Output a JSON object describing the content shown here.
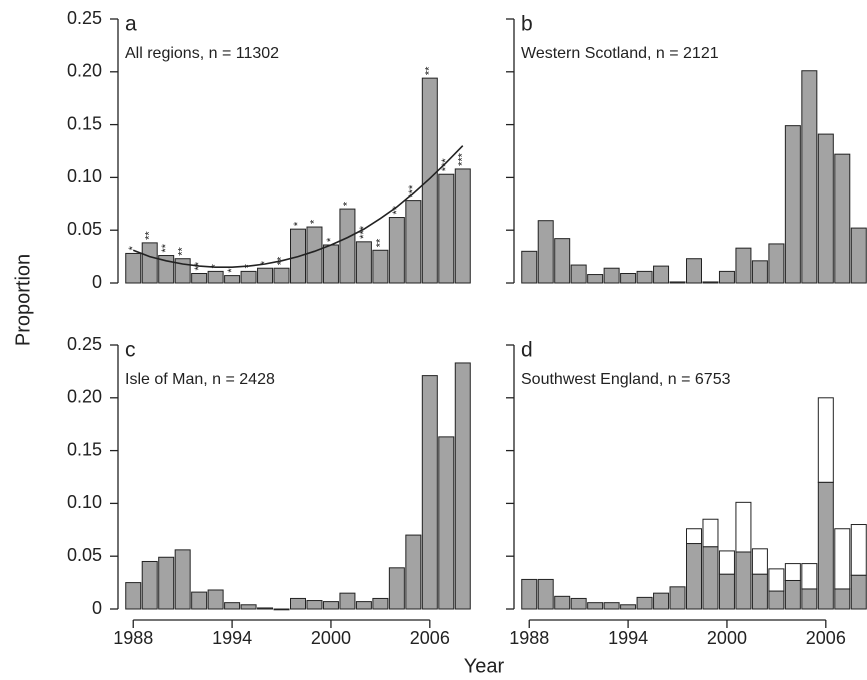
{
  "shared": {
    "y_label": "Proportion",
    "x_label": "Year"
  },
  "chart_data": [
    {
      "type": "bar",
      "title": "a",
      "subtitle": "All regions, n = 11302",
      "x": [
        1988,
        1989,
        1990,
        1991,
        1992,
        1993,
        1994,
        1995,
        1996,
        1997,
        1998,
        1999,
        2000,
        2001,
        2002,
        2003,
        2004,
        2005,
        2006,
        2007,
        2008
      ],
      "xlim": [
        1987.5,
        2008.5
      ],
      "values": [
        0.028,
        0.038,
        0.026,
        0.023,
        0.009,
        0.011,
        0.007,
        0.011,
        0.014,
        0.014,
        0.051,
        0.053,
        0.036,
        0.07,
        0.039,
        0.031,
        0.062,
        0.078,
        0.194,
        0.103,
        0.108
      ],
      "color": "#a3a3a3",
      "annotations": [
        "*",
        "**",
        "**",
        "**",
        "**",
        "*",
        "*",
        "*",
        "*",
        "**",
        "*",
        "*",
        "*",
        "*",
        "***",
        "**",
        "**",
        "***",
        "**",
        "***",
        "***"
      ],
      "trend": [
        0.031,
        0.025,
        0.021,
        0.018,
        0.016,
        0.015,
        0.015,
        0.016,
        0.018,
        0.021,
        0.025,
        0.03,
        0.036,
        0.043,
        0.051,
        0.061,
        0.072,
        0.085,
        0.099,
        0.114,
        0.13
      ],
      "ylim": [
        0,
        0.25
      ],
      "yticks": [
        0,
        0.05,
        {
          "value": 0.1,
          "label": "0.10"
        },
        0.15,
        {
          "value": 0.2,
          "label": "0.20"
        },
        0.25
      ],
      "ytick_labels": true
    },
    {
      "type": "bar",
      "title": "b",
      "subtitle": "Western Scotland, n = 2121",
      "x": [
        1988,
        1989,
        1990,
        1991,
        1992,
        1993,
        1994,
        1995,
        1996,
        1997,
        1998,
        1999,
        2000,
        2001,
        2002,
        2003,
        2004,
        2005,
        2006,
        2007,
        2008
      ],
      "xlim": [
        1987.5,
        2008.5
      ],
      "values": [
        0.03,
        0.059,
        0.042,
        0.017,
        0.008,
        0.014,
        0.009,
        0.011,
        0.016,
        0.001,
        0.023,
        0.001,
        0.011,
        0.033,
        0.021,
        0.037,
        0.149,
        0.201,
        0.141,
        0.122,
        0.052
      ],
      "color": "#a3a3a3",
      "ylim": [
        0,
        0.25
      ],
      "yticks": [
        0,
        0.05,
        0.1,
        0.15,
        0.2,
        0.25
      ],
      "ytick_labels": false
    },
    {
      "type": "bar",
      "title": "c",
      "subtitle": "Isle of Man, n = 2428",
      "x": [
        1988,
        1989,
        1990,
        1991,
        1992,
        1993,
        1994,
        1995,
        1996,
        1997,
        1998,
        1999,
        2000,
        2001,
        2002,
        2003,
        2004,
        2005,
        2006,
        2007,
        2008
      ],
      "xlim": [
        1987.5,
        2008.5
      ],
      "xticks": [
        1988,
        1994,
        2000,
        2006
      ],
      "values": [
        0.025,
        0.045,
        0.049,
        0.056,
        0.016,
        0.018,
        0.006,
        0.004,
        0.001,
        0,
        0.01,
        0.008,
        0.007,
        0.015,
        0.007,
        0.01,
        0.039,
        0.07,
        0.221,
        0.163,
        0.233
      ],
      "color": "#a3a3a3",
      "ylim": [
        0,
        0.25
      ],
      "yticks": [
        0,
        0.05,
        {
          "value": 0.1,
          "label": "0.10"
        },
        0.15,
        {
          "value": 0.2,
          "label": "0.20"
        },
        0.25
      ],
      "ytick_labels": true
    },
    {
      "type": "bar",
      "title": "d",
      "subtitle": "Southwest England, n = 6753",
      "x": [
        1988,
        1989,
        1990,
        1991,
        1992,
        1993,
        1994,
        1995,
        1996,
        1997,
        1998,
        1999,
        2000,
        2001,
        2002,
        2003,
        2004,
        2005,
        2006,
        2007,
        2008
      ],
      "xlim": [
        1987.5,
        2008.5
      ],
      "xticks": [
        1988,
        1994,
        2000,
        2006
      ],
      "stacked": true,
      "series": [
        {
          "color": "#a3a3a3",
          "values": [
            0.028,
            0.028,
            0.012,
            0.01,
            0.006,
            0.006,
            0.004,
            0.011,
            0.015,
            0.021,
            0.062,
            0.059,
            0.033,
            0.054,
            0.033,
            0.017,
            0.027,
            0.019,
            0.12,
            0.019,
            0.032
          ]
        },
        {
          "color": "#ffffff",
          "values": [
            0,
            0,
            0,
            0,
            0,
            0,
            0,
            0,
            0,
            0,
            0.014,
            0.026,
            0.022,
            0.047,
            0.024,
            0.021,
            0.016,
            0.024,
            0.08,
            0.057,
            0.048
          ]
        }
      ],
      "ylim": [
        0,
        0.25
      ],
      "yticks": [
        0,
        0.05,
        0.1,
        0.15,
        0.2,
        0.25
      ],
      "ytick_labels": false
    }
  ]
}
